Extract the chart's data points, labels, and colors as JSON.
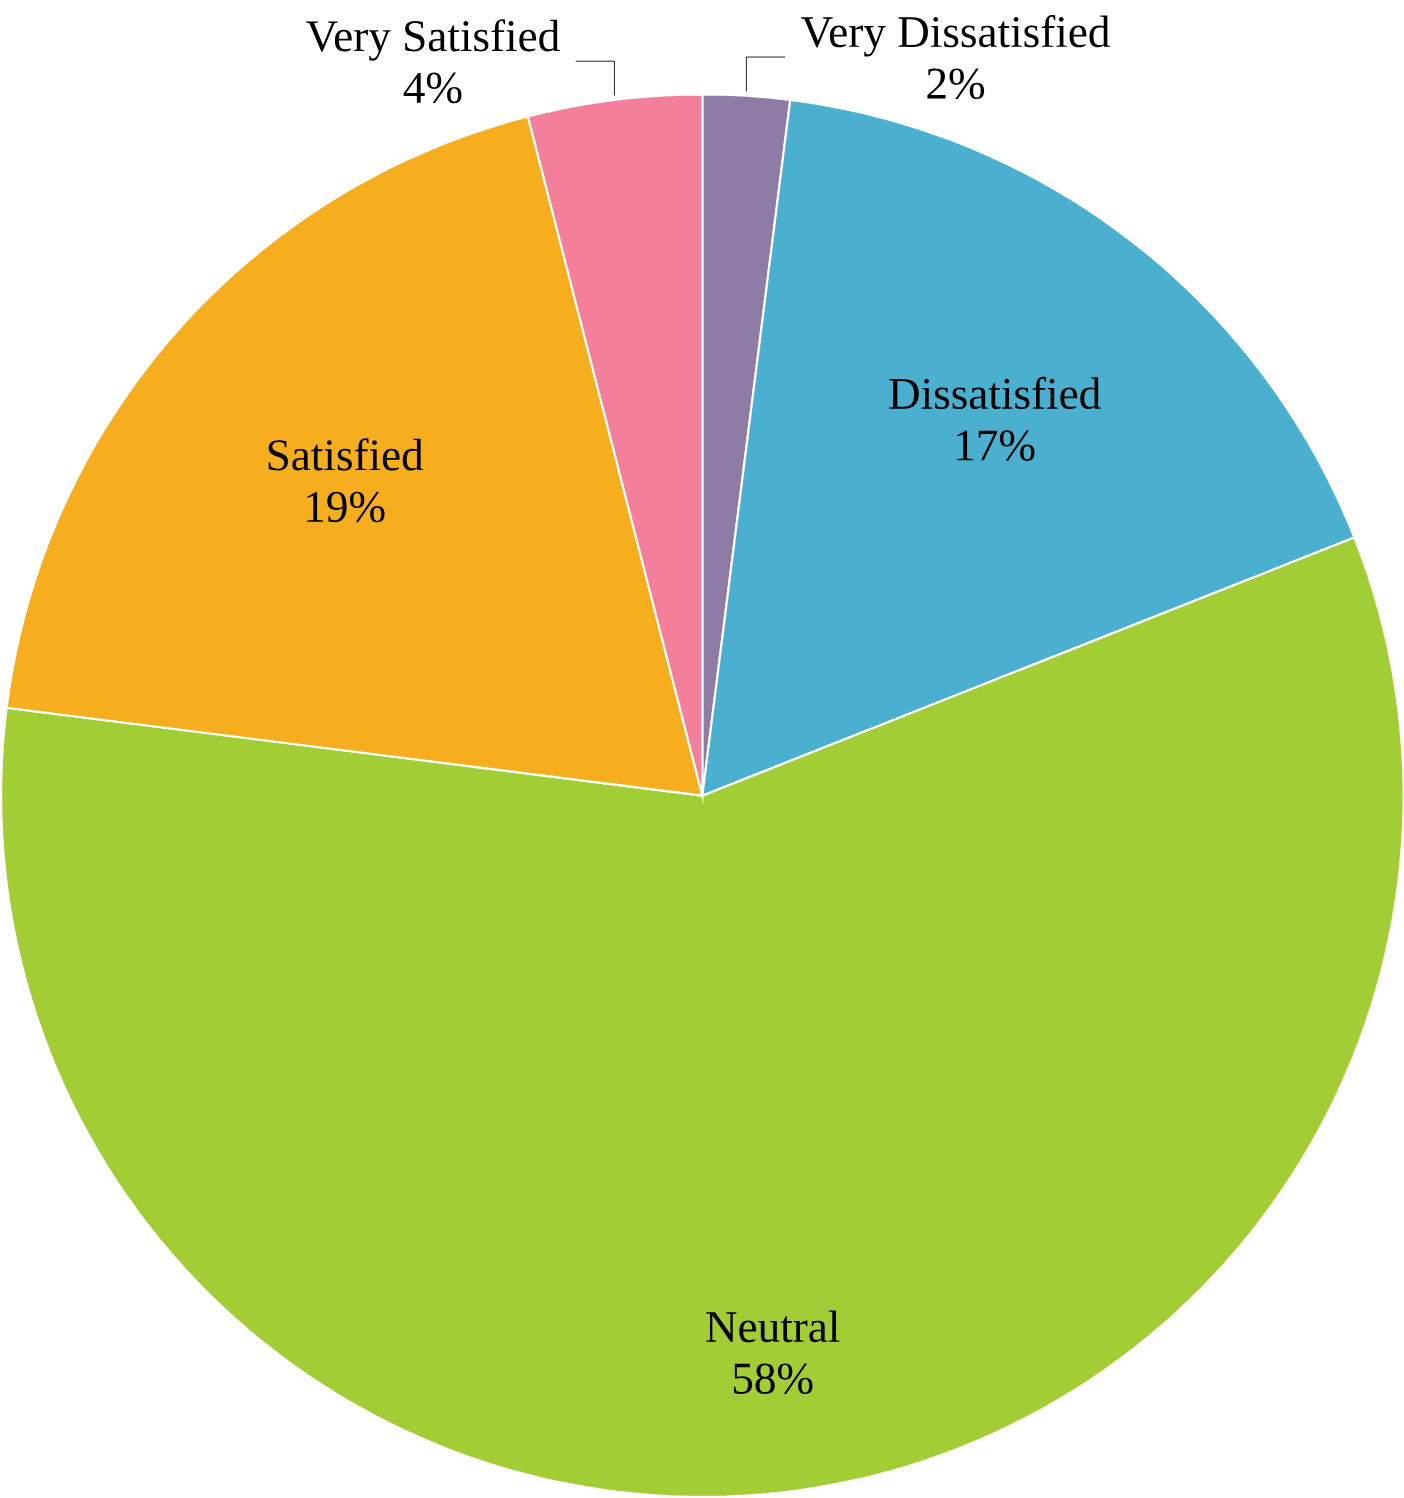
{
  "chart_data": {
    "type": "pie",
    "categories": [
      "Very Dissatisfied",
      "Dissatisfied",
      "Neutral",
      "Satisfied",
      "Very Satisfied"
    ],
    "values": [
      2,
      17,
      58,
      19,
      4
    ],
    "colors": [
      "#8e7ba6",
      "#4bafcf",
      "#a3cd35",
      "#f6ae1e",
      "#f47f9a"
    ],
    "value_labels": [
      "2%",
      "17%",
      "58%",
      "19%",
      "4%"
    ]
  }
}
